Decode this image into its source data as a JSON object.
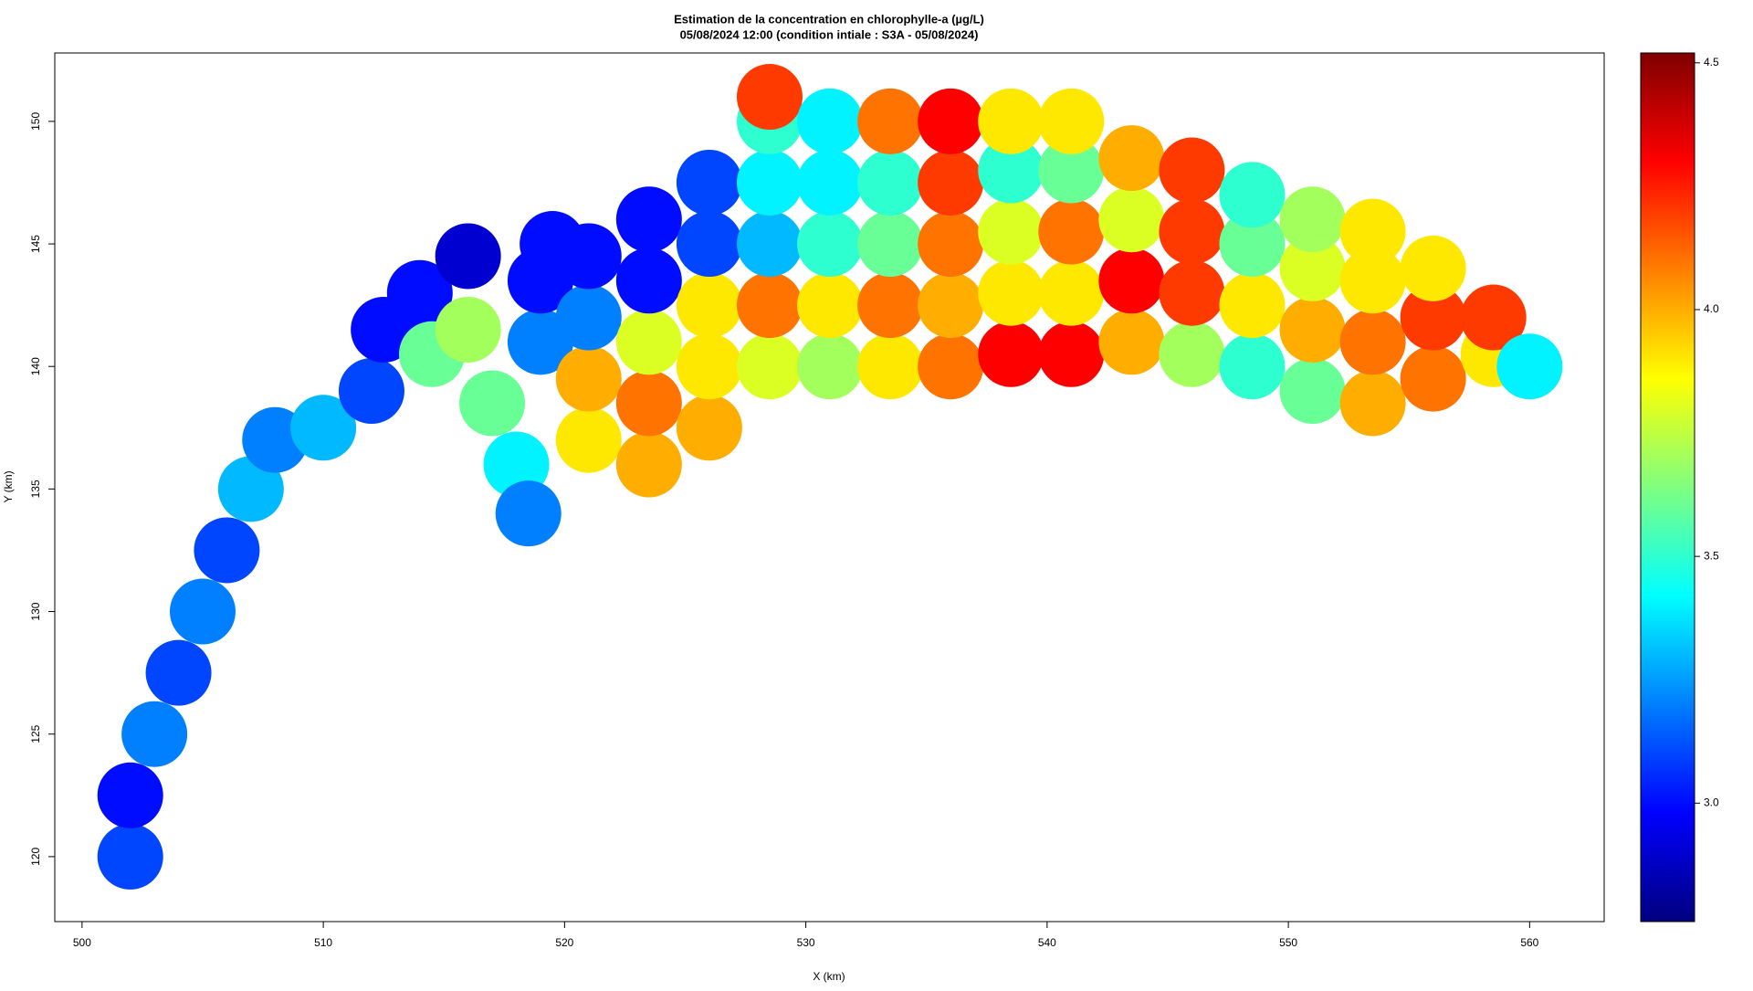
{
  "chart_data": {
    "type": "scatter",
    "title": "Estimation de la concentration en chlorophylle-a (µg/L)",
    "subtitle": "05/08/2024 12:00 (condition intiale : S3A - 05/08/2024)",
    "xlabel": "X (km)",
    "ylabel": "Y (km)",
    "xlim": [
      498.87,
      563.09
    ],
    "ylim": [
      117.35,
      152.79
    ],
    "xticks": [
      500,
      510,
      520,
      530,
      540,
      550,
      560
    ],
    "yticks": [
      120,
      125,
      130,
      135,
      140,
      145,
      150
    ],
    "colorbar_lim": [
      2.76,
      4.52
    ],
    "colorbar_ticks": [
      {
        "value": 3,
        "label": "3.0"
      },
      3.5,
      {
        "value": 4,
        "label": "4.0"
      },
      4.5
    ],
    "colormap": [
      "#00007f",
      "#0000ff",
      "#007fff",
      "#00ffff",
      "#7fff7f",
      "#ffff00",
      "#ff7f00",
      "#ff0000",
      "#7f0000"
    ],
    "x": [
      502,
      502,
      503,
      504,
      505,
      506,
      507,
      508,
      510,
      512,
      512.5,
      514,
      514.5,
      516,
      516,
      517,
      518,
      518.5,
      519,
      519,
      519.5,
      521,
      521,
      521,
      521,
      523.5,
      523.5,
      523.5,
      523.5,
      523.5,
      526,
      526,
      526,
      526,
      526,
      528.5,
      528.5,
      528.5,
      528.5,
      528.5,
      528.5,
      531,
      531,
      531,
      531,
      531,
      533.5,
      533.5,
      533.5,
      533.5,
      533.5,
      536,
      536,
      536,
      536,
      536,
      538.5,
      538.5,
      538.5,
      538.5,
      538.5,
      541,
      541,
      541,
      541,
      541,
      543.5,
      543.5,
      543.5,
      543.5,
      546,
      546,
      546,
      546,
      548.5,
      548.5,
      548.5,
      548.5,
      551,
      551,
      551,
      551,
      553.5,
      553.5,
      553.5,
      553.5,
      556,
      556,
      556,
      558.5,
      558.5,
      560
    ],
    "y": [
      120,
      122.5,
      125,
      127.5,
      130,
      132.5,
      135,
      137,
      137.5,
      139,
      141.5,
      143,
      140.5,
      141.5,
      144.5,
      138.5,
      136,
      134,
      141,
      143.5,
      145,
      137,
      139.5,
      142,
      144.5,
      136,
      138.5,
      141,
      143.5,
      146,
      137.5,
      140,
      142.5,
      145,
      147.5,
      140,
      142.5,
      145,
      147.5,
      150,
      151,
      140,
      142.5,
      145,
      147.5,
      150,
      140,
      142.5,
      145,
      147.5,
      150,
      140,
      142.5,
      145,
      147.5,
      150,
      140.5,
      143,
      145.5,
      148,
      150,
      140.5,
      143,
      145.5,
      148,
      150,
      141,
      143.5,
      146,
      148.5,
      140.5,
      143,
      145.5,
      148,
      140,
      142.5,
      145,
      147,
      139,
      141.5,
      144,
      146,
      138.5,
      141,
      143.5,
      145.5,
      139.5,
      142,
      144,
      140.5,
      142,
      140
    ],
    "values": [
      3.1,
      3.0,
      3.2,
      3.1,
      3.2,
      3.1,
      3.3,
      3.2,
      3.3,
      3.1,
      3.0,
      3.0,
      3.6,
      3.7,
      2.9,
      3.6,
      3.4,
      3.2,
      3.2,
      3.0,
      3.0,
      3.9,
      4.0,
      3.2,
      3.0,
      4.0,
      4.1,
      3.8,
      3.0,
      3.0,
      4.0,
      3.9,
      3.9,
      3.1,
      3.1,
      3.8,
      4.1,
      3.3,
      3.4,
      3.5,
      4.2,
      3.7,
      3.9,
      3.5,
      3.4,
      3.4,
      3.9,
      4.1,
      3.6,
      3.5,
      4.1,
      4.1,
      4.0,
      4.1,
      4.2,
      4.3,
      4.3,
      3.9,
      3.8,
      3.5,
      3.9,
      4.3,
      3.9,
      4.1,
      3.6,
      3.9,
      4.0,
      4.3,
      3.8,
      4.0,
      3.7,
      4.2,
      4.2,
      4.2,
      3.5,
      3.9,
      3.6,
      3.5,
      3.6,
      4.0,
      3.8,
      3.7,
      4.0,
      4.1,
      3.9,
      3.9,
      4.1,
      4.2,
      3.9,
      3.9,
      4.2,
      3.4
    ]
  }
}
